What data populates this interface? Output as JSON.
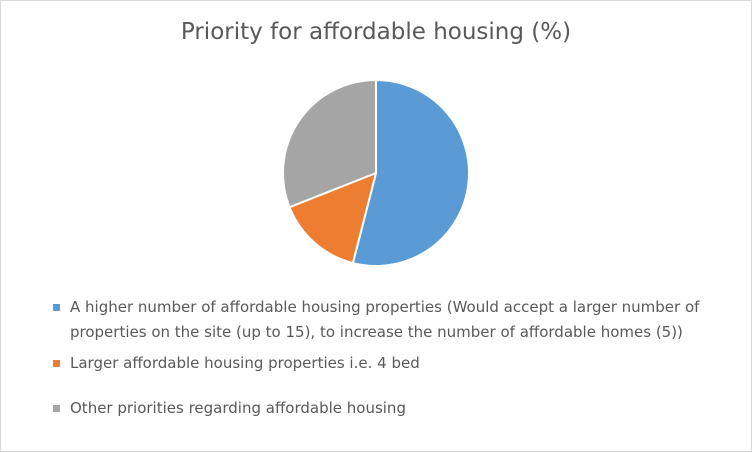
{
  "chart_data": {
    "type": "pie",
    "title": "Priority for affordable housing (%)",
    "slices": [
      {
        "label": "A higher number of affordable housing properties (Would accept a larger number of properties on the site (up to 15), to increase the number of affordable homes (5))",
        "value": 54,
        "color": "#5b9bd5"
      },
      {
        "label": "Larger affordable housing properties i.e. 4 bed",
        "value": 15,
        "color": "#ed7d31"
      },
      {
        "label": "Other priorities regarding affordable housing",
        "value": 31,
        "color": "#a5a5a5"
      }
    ],
    "start_angle_deg": 0,
    "direction": "clockwise",
    "legend_position": "bottom"
  }
}
